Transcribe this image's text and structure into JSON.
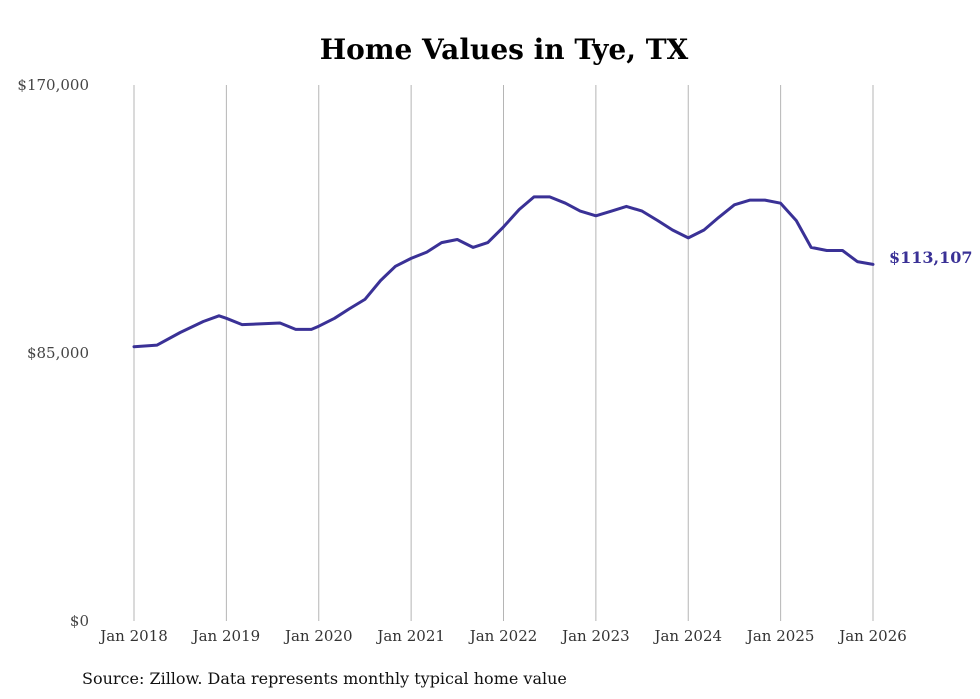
{
  "colors": {
    "line": "#3a3196",
    "grid": "#b5b5b5",
    "text": "#444444"
  },
  "chart_data": {
    "type": "line",
    "title": "Home Values in Tye, TX",
    "xlabel": "",
    "ylabel": "",
    "ylim": [
      0,
      170000
    ],
    "xlim": [
      2018,
      2026
    ],
    "y_ticks": [
      {
        "value": 0,
        "label": "$0"
      },
      {
        "value": 85000,
        "label": "$85,000"
      },
      {
        "value": 170000,
        "label": "$170,000"
      }
    ],
    "x_ticks": [
      {
        "value": 2018,
        "label": "Jan 2018"
      },
      {
        "value": 2019,
        "label": "Jan 2019"
      },
      {
        "value": 2020,
        "label": "Jan 2020"
      },
      {
        "value": 2021,
        "label": "Jan 2021"
      },
      {
        "value": 2022,
        "label": "Jan 2022"
      },
      {
        "value": 2023,
        "label": "Jan 2023"
      },
      {
        "value": 2024,
        "label": "Jan 2024"
      },
      {
        "value": 2025,
        "label": "Jan 2025"
      },
      {
        "value": 2026,
        "label": "Jan 2026"
      }
    ],
    "grid": "vertical",
    "series": [
      {
        "name": "Typical home value",
        "x": [
          2018.0,
          2018.25,
          2018.5,
          2018.75,
          2018.92,
          2019.0,
          2019.17,
          2019.33,
          2019.58,
          2019.75,
          2019.92,
          2020.0,
          2020.17,
          2020.33,
          2020.5,
          2020.67,
          2020.83,
          2021.0,
          2021.17,
          2021.33,
          2021.5,
          2021.67,
          2021.83,
          2022.0,
          2022.17,
          2022.33,
          2022.5,
          2022.67,
          2022.83,
          2023.0,
          2023.17,
          2023.33,
          2023.5,
          2023.67,
          2023.83,
          2024.0,
          2024.17,
          2024.33,
          2024.5,
          2024.67,
          2024.83,
          2025.0,
          2025.17,
          2025.33,
          2025.5,
          2025.67,
          2025.83,
          2026.0
        ],
        "values": [
          87000,
          87500,
          91500,
          95000,
          96800,
          96000,
          94000,
          94200,
          94500,
          92500,
          92500,
          93500,
          96000,
          99000,
          102000,
          108000,
          112500,
          115000,
          117000,
          120000,
          121000,
          118500,
          120000,
          125000,
          130500,
          134500,
          134500,
          132500,
          130000,
          128500,
          130000,
          131500,
          130000,
          127000,
          124000,
          121500,
          124000,
          128000,
          132000,
          133500,
          133500,
          132500,
          127000,
          118500,
          117500,
          117500,
          114000,
          113107
        ]
      }
    ],
    "end_label": "$113,107",
    "source": "Source: Zillow. Data represents monthly typical home value"
  }
}
